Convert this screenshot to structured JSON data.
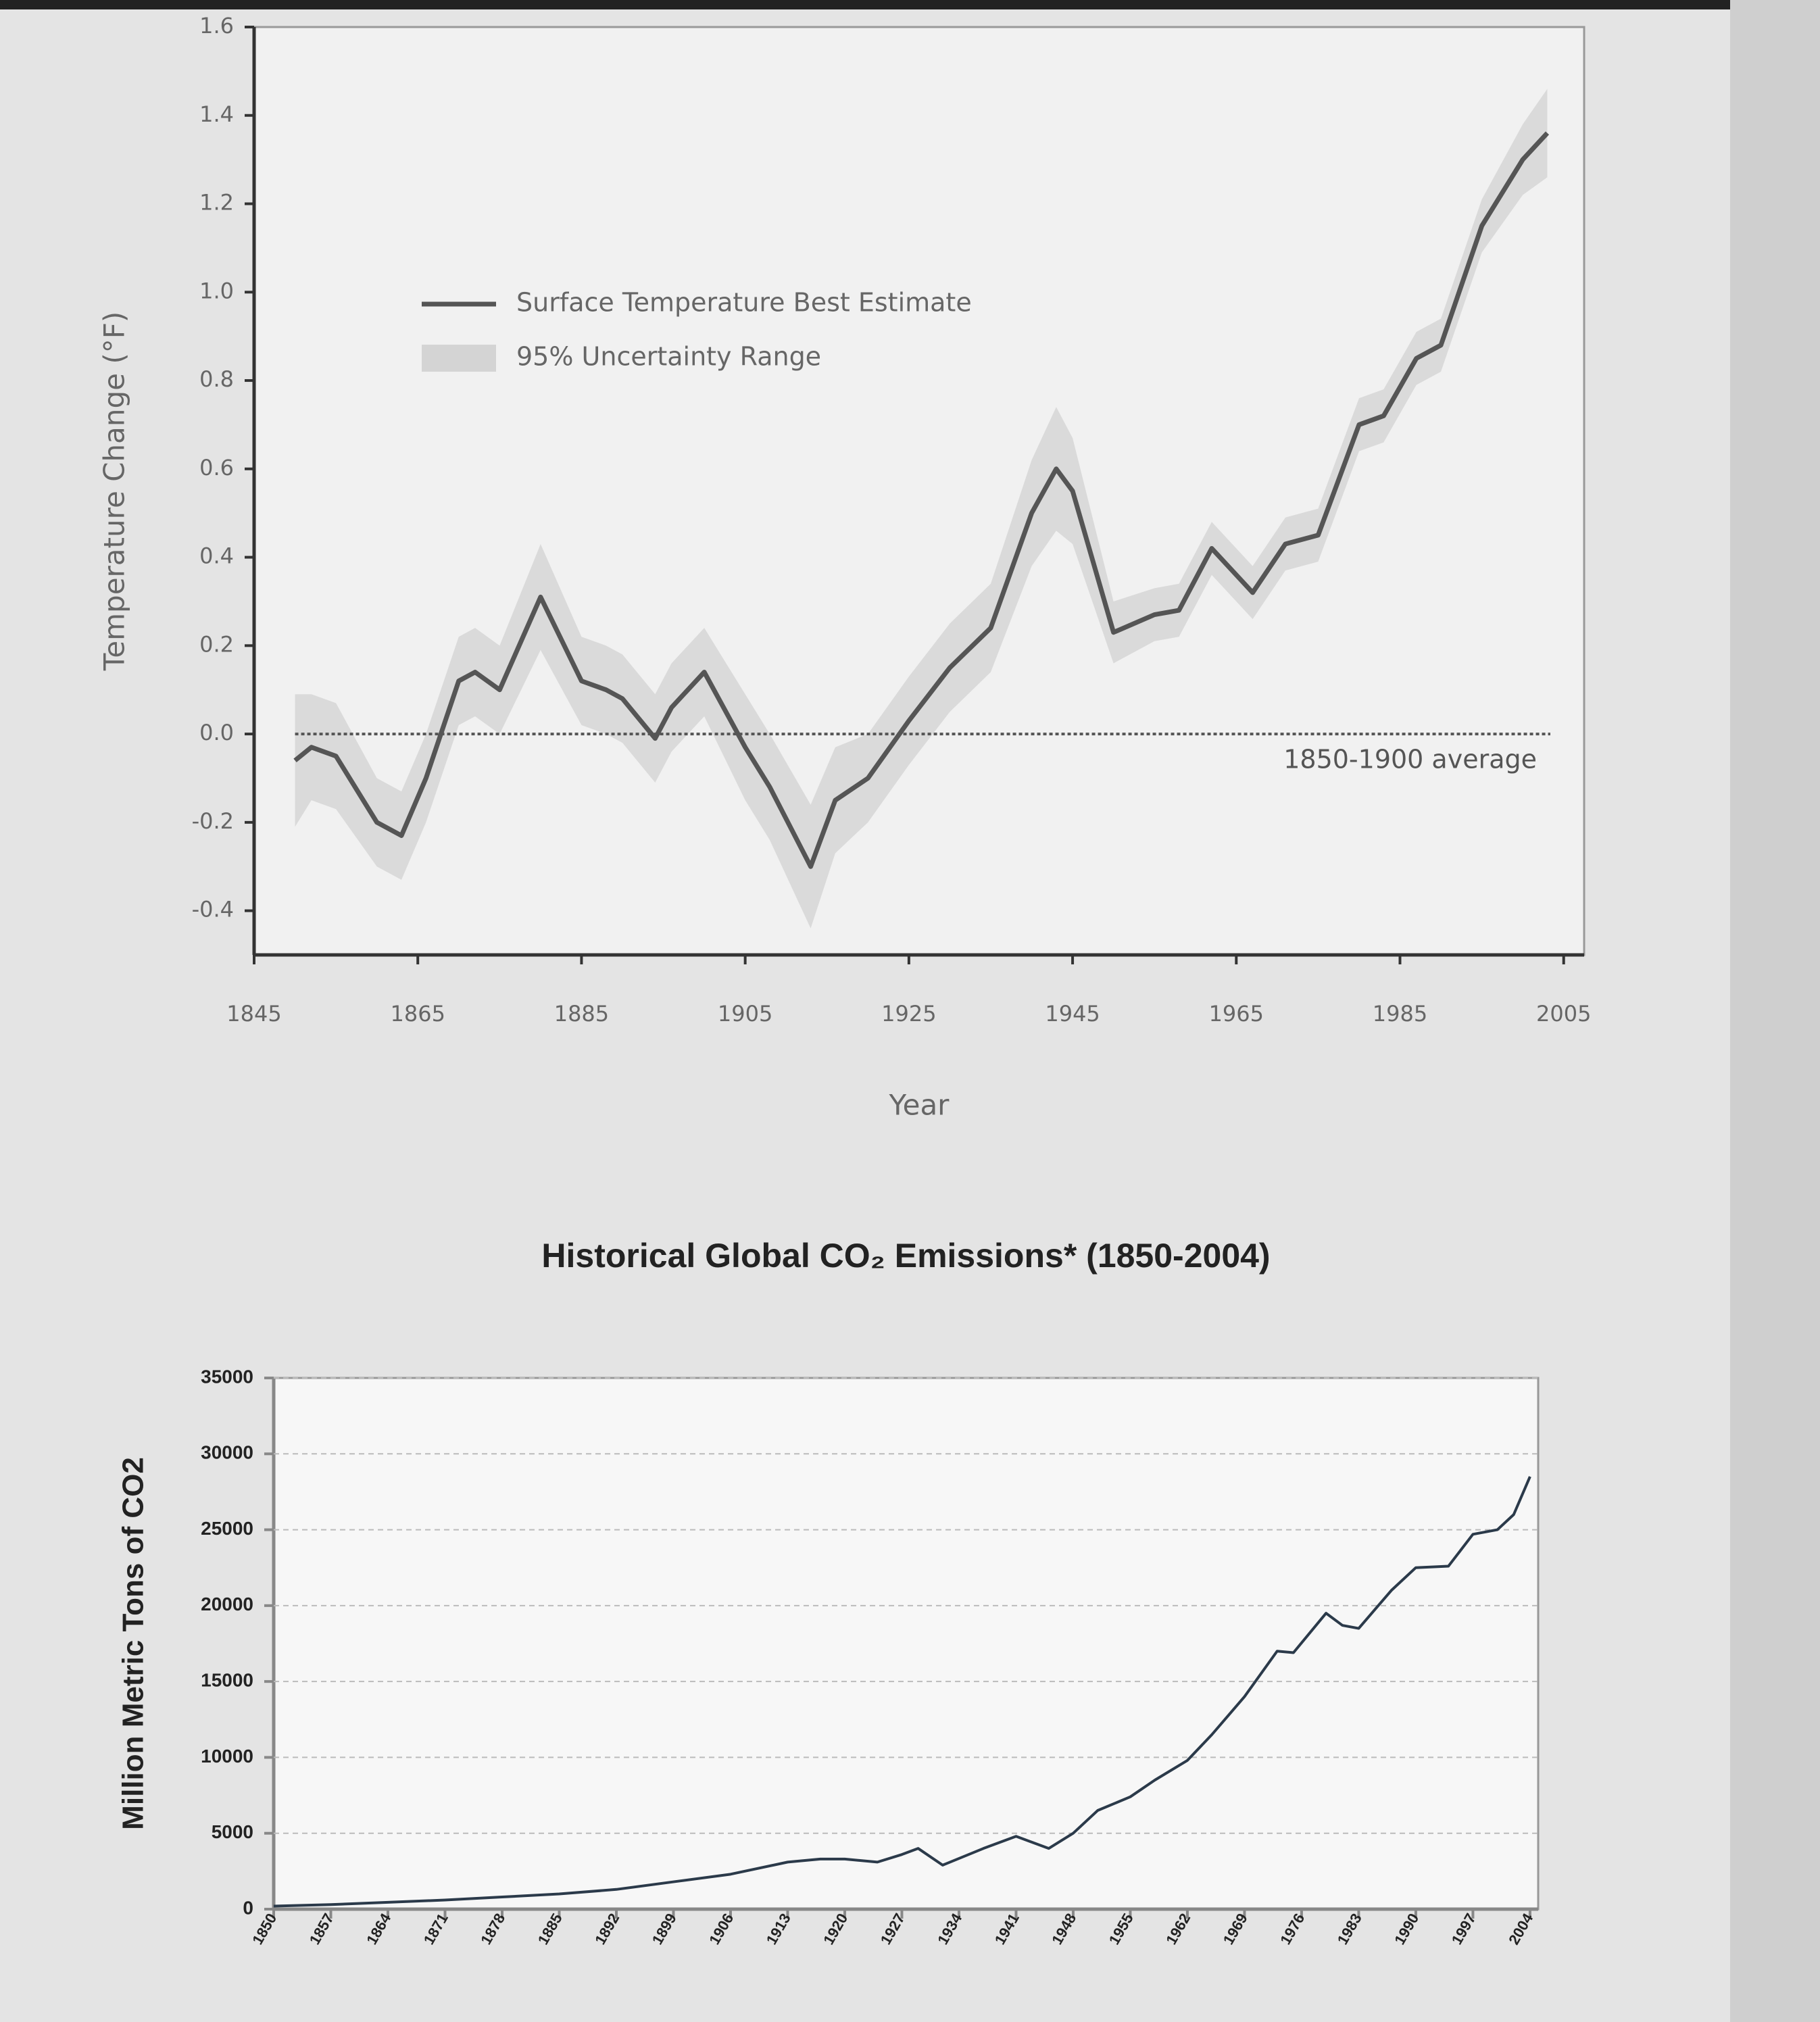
{
  "chart_data": [
    {
      "type": "line",
      "x_label": "Year",
      "y_label": "Temperature Change (°F)",
      "x": [
        1850,
        1852,
        1855,
        1860,
        1863,
        1866,
        1870,
        1872,
        1875,
        1880,
        1885,
        1888,
        1890,
        1894,
        1896,
        1900,
        1905,
        1908,
        1913,
        1916,
        1920,
        1925,
        1930,
        1935,
        1940,
        1943,
        1945,
        1950,
        1955,
        1958,
        1962,
        1967,
        1971,
        1975,
        1980,
        1983,
        1987,
        1990,
        1995,
        2000,
        2003
      ],
      "series": [
        {
          "name": "Surface Temperature Best Estimate",
          "color": "#555555",
          "values": [
            -0.06,
            -0.03,
            -0.05,
            -0.2,
            -0.23,
            -0.1,
            0.12,
            0.14,
            0.1,
            0.31,
            0.12,
            0.1,
            0.08,
            -0.01,
            0.06,
            0.14,
            -0.03,
            -0.12,
            -0.3,
            -0.15,
            -0.1,
            0.03,
            0.15,
            0.24,
            0.5,
            0.6,
            0.55,
            0.23,
            0.27,
            0.28,
            0.42,
            0.32,
            0.43,
            0.45,
            0.7,
            0.72,
            0.85,
            0.88,
            1.15,
            1.3,
            1.36
          ]
        }
      ],
      "band": {
        "name": "95% Uncertainty Range",
        "color": "#d4d4d4",
        "upper": [
          0.09,
          0.09,
          0.07,
          -0.1,
          -0.13,
          0,
          0.22,
          0.24,
          0.2,
          0.43,
          0.22,
          0.2,
          0.18,
          0.09,
          0.16,
          0.24,
          0.09,
          0,
          -0.16,
          -0.03,
          0,
          0.13,
          0.25,
          0.34,
          0.62,
          0.74,
          0.67,
          0.3,
          0.33,
          0.34,
          0.48,
          0.38,
          0.49,
          0.51,
          0.76,
          0.78,
          0.91,
          0.94,
          1.21,
          1.38,
          1.46
        ],
        "lower": [
          -0.21,
          -0.15,
          -0.17,
          -0.3,
          -0.33,
          -0.2,
          0.02,
          0.04,
          0,
          0.19,
          0.02,
          0,
          -0.02,
          -0.11,
          -0.04,
          0.04,
          -0.15,
          -0.24,
          -0.44,
          -0.27,
          -0.2,
          -0.07,
          0.05,
          0.14,
          0.38,
          0.46,
          0.43,
          0.16,
          0.21,
          0.22,
          0.36,
          0.26,
          0.37,
          0.39,
          0.64,
          0.66,
          0.79,
          0.82,
          1.09,
          1.22,
          1.26
        ]
      },
      "reference_line": {
        "value": 0,
        "label": "1850-1900 average"
      },
      "xlim": [
        1845,
        2007.5
      ],
      "xticks": [
        1845,
        1865,
        1885,
        1905,
        1925,
        1945,
        1965,
        1985,
        2005
      ],
      "ylim": [
        -0.5,
        1.6
      ],
      "yticks": [
        -0.4,
        -0.2,
        {
          "value": 0,
          "label": "0.0"
        },
        0.2,
        0.4,
        0.6,
        0.8,
        {
          "value": 1,
          "label": "1.0"
        },
        1.2,
        1.4,
        1.6
      ],
      "grid": false,
      "legend": "upper left"
    },
    {
      "type": "line",
      "title": "Historical Global CO₂ Emissions* (1850-2004)",
      "y_label": "Million Metric Tons of CO2",
      "x": [
        1850,
        1857,
        1864,
        1871,
        1878,
        1885,
        1892,
        1899,
        1906,
        1913,
        1917,
        1920,
        1924,
        1927,
        1929,
        1932,
        1937,
        1941,
        1945,
        1948,
        1951,
        1955,
        1958,
        1962,
        1965,
        1969,
        1973,
        1975,
        1979,
        1981,
        1983,
        1987,
        1990,
        1994,
        1997,
        2000,
        2002,
        2004
      ],
      "series": [
        {
          "name": null,
          "color": "#2b3a4a",
          "values": [
            200,
            300,
            450,
            600,
            800,
            1000,
            1300,
            1800,
            2300,
            3100,
            3300,
            3300,
            3100,
            3600,
            4000,
            2900,
            4000,
            4800,
            4000,
            5000,
            6500,
            7400,
            8500,
            9800,
            11500,
            14000,
            17000,
            16900,
            19500,
            18700,
            18500,
            21000,
            22500,
            22600,
            24700,
            25000,
            26000,
            28500
          ]
        }
      ],
      "xlim": [
        1850,
        2005
      ],
      "xticks": [
        1850,
        1857,
        1864,
        1871,
        1878,
        1885,
        1892,
        1899,
        1906,
        1913,
        1920,
        1927,
        1934,
        1941,
        1948,
        1955,
        1962,
        1969,
        1976,
        1983,
        1990,
        1997,
        2004
      ],
      "ylim": [
        0,
        35000
      ],
      "yticks": [
        0,
        5000,
        10000,
        15000,
        20000,
        25000,
        30000,
        35000
      ],
      "grid": true
    }
  ]
}
